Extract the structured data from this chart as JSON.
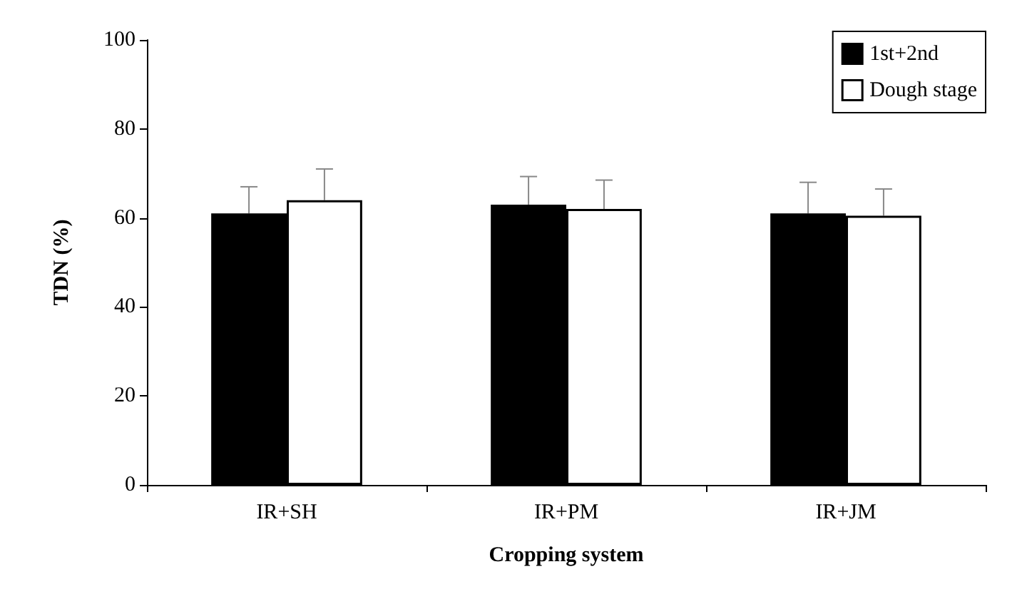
{
  "chart_data": {
    "type": "bar",
    "xlabel": "Cropping system",
    "ylabel": "TDN (%)",
    "categories": [
      "IR+SH",
      "IR+PM",
      "IR+JM"
    ],
    "series": [
      {
        "name": "1st+2nd",
        "color": "#000000",
        "values": [
          61,
          63,
          61
        ],
        "errors": [
          6,
          6.3,
          7
        ]
      },
      {
        "name": "Dough stage",
        "color": "#ffffff",
        "values": [
          64,
          62,
          60.5
        ],
        "errors": [
          7,
          6.5,
          6
        ]
      }
    ],
    "ylim": [
      0,
      100
    ],
    "yticks": [
      0,
      20,
      40,
      60,
      80,
      100
    ],
    "grid": false,
    "legend": "top right"
  }
}
